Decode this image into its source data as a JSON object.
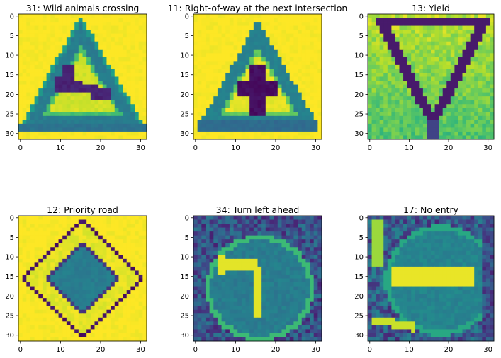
{
  "chart_data": [
    {
      "type": "heatmap",
      "title": "31: Wild animals crossing",
      "motif": "triangle-animal",
      "xticks": [
        0,
        10,
        20,
        30
      ],
      "yticks": [
        0,
        5,
        10,
        15,
        20,
        25,
        30
      ],
      "xlim": [
        0,
        31
      ],
      "ylim": [
        31,
        0
      ],
      "grid": false
    },
    {
      "type": "heatmap",
      "title": "11: Right-of-way at the next intersection",
      "motif": "triangle-cross",
      "xticks": [
        0,
        10,
        20,
        30
      ],
      "yticks": [
        0,
        5,
        10,
        15,
        20,
        25,
        30
      ],
      "xlim": [
        0,
        31
      ],
      "ylim": [
        31,
        0
      ],
      "grid": false
    },
    {
      "type": "heatmap",
      "title": "13: Yield",
      "motif": "inverted-triangle",
      "xticks": [
        0,
        10,
        20,
        30
      ],
      "yticks": [
        0,
        5,
        10,
        15,
        20,
        25,
        30
      ],
      "xlim": [
        0,
        31
      ],
      "ylim": [
        31,
        0
      ],
      "grid": false
    },
    {
      "type": "heatmap",
      "title": "12: Priority road",
      "motif": "diamond",
      "xticks": [
        0,
        10,
        20,
        30
      ],
      "yticks": [
        0,
        5,
        10,
        15,
        20,
        25,
        30
      ],
      "xlim": [
        0,
        31
      ],
      "ylim": [
        31,
        0
      ],
      "grid": false
    },
    {
      "type": "heatmap",
      "title": "34: Turn left ahead",
      "motif": "circle-arrow",
      "xticks": [
        0,
        10,
        20,
        30
      ],
      "yticks": [
        0,
        5,
        10,
        15,
        20,
        25,
        30
      ],
      "xlim": [
        0,
        31
      ],
      "ylim": [
        31,
        0
      ],
      "grid": false
    },
    {
      "type": "heatmap",
      "title": "17: No entry",
      "motif": "circle-bar",
      "xticks": [
        0,
        10,
        20,
        30
      ],
      "yticks": [
        0,
        5,
        10,
        15,
        20,
        25,
        30
      ],
      "xlim": [
        0,
        31
      ],
      "ylim": [
        31,
        0
      ],
      "grid": false
    }
  ],
  "colors": {
    "colormap": "viridis",
    "yellow": "#fde725",
    "light_green": "#b5de2b",
    "green": "#35b779",
    "teal": "#26828e",
    "blue": "#31688e",
    "indigo": "#443983",
    "dark": "#440154"
  }
}
